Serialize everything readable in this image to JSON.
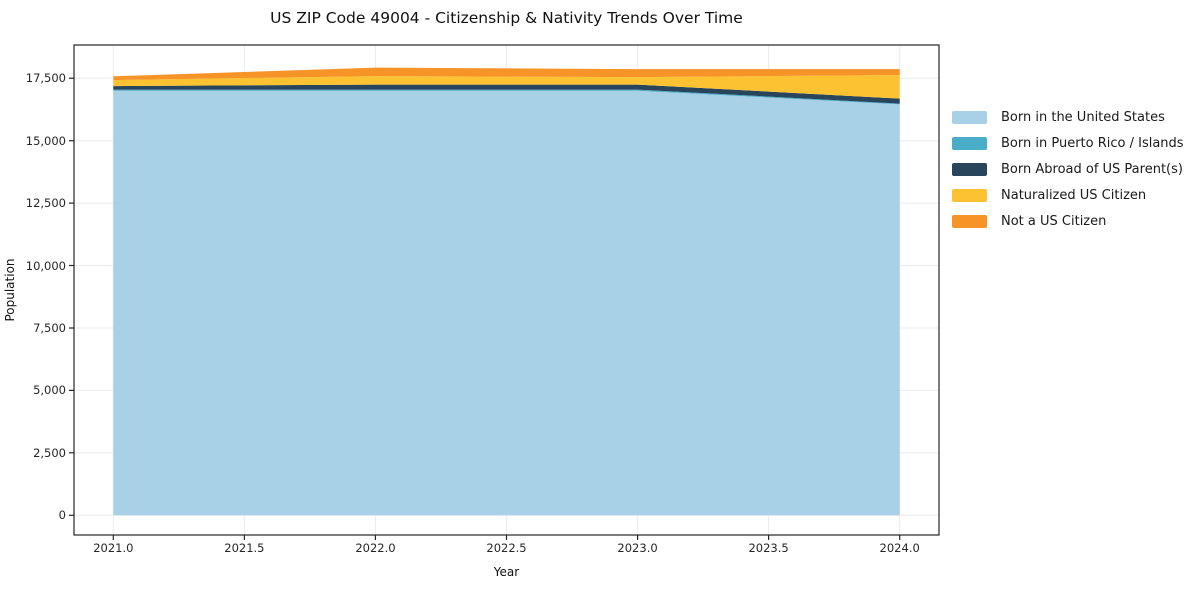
{
  "title": "US ZIP Code 49004 - Citizenship & Nativity Trends Over Time",
  "chart_data": {
    "type": "area",
    "stacked": true,
    "title": "US ZIP Code 49004 - Citizenship & Nativity Trends Over Time",
    "xlabel": "Year",
    "ylabel": "Population",
    "x": [
      2021,
      2022,
      2023,
      2024
    ],
    "series": [
      {
        "name": "Born in the United States",
        "color": "#a8d1e7",
        "values": [
          17000,
          17000,
          17000,
          16450
        ]
      },
      {
        "name": "Born in Puerto Rico / Islands",
        "color": "#4aadc7",
        "values": [
          45,
          45,
          45,
          35
        ]
      },
      {
        "name": "Born Abroad of US Parent(s)",
        "color": "#28455c",
        "values": [
          140,
          200,
          200,
          200
        ]
      },
      {
        "name": "Naturalized US Citizen",
        "color": "#fcc231",
        "values": [
          240,
          340,
          300,
          940
        ]
      },
      {
        "name": "Not a US Citizen",
        "color": "#f79428",
        "values": [
          150,
          340,
          320,
          240
        ]
      }
    ],
    "totals": [
      17575,
      17925,
      17865,
      17865
    ],
    "xticks": [
      "2021.0",
      "2021.5",
      "2022.0",
      "2022.5",
      "2023.0",
      "2023.5",
      "2024.0"
    ],
    "xtick_values": [
      2021,
      2021.5,
      2022,
      2022.5,
      2023,
      2023.5,
      2024
    ],
    "yticks": [
      "0",
      "2,500",
      "5,000",
      "7,500",
      "10,000",
      "12,500",
      "15,000",
      "17,500"
    ],
    "ytick_values": [
      0,
      2500,
      5000,
      7500,
      10000,
      12500,
      15000,
      17500
    ],
    "xlim": [
      2020.85,
      2024.15
    ],
    "ylim": [
      -790,
      18830
    ],
    "grid": true,
    "grid_color": "#ebebeb",
    "spine_color": "#262626",
    "legend_position": "right-outside",
    "legend_frame": false
  }
}
